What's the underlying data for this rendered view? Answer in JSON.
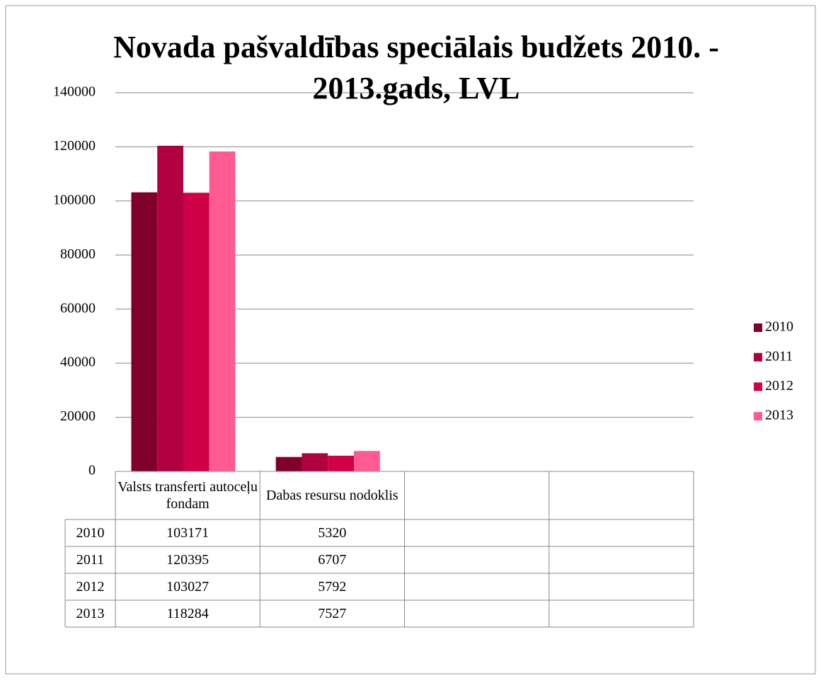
{
  "chart_data": {
    "type": "bar",
    "title": "Novada pašvaldības speciālais budžets 2010. - 2013.gads, LVL",
    "categories": [
      "Valsts transferti autoceļu fondam",
      "Dabas resursu nodoklis",
      null,
      null
    ],
    "series": [
      {
        "name": "2010",
        "color": "#800029",
        "values": [
          103171,
          5320,
          null,
          null
        ]
      },
      {
        "name": "2011",
        "color": "#b0003f",
        "values": [
          120395,
          6707,
          null,
          null
        ]
      },
      {
        "name": "2012",
        "color": "#d00046",
        "values": [
          103027,
          5792,
          null,
          null
        ]
      },
      {
        "name": "2013",
        "color": "#ff5b91",
        "values": [
          118284,
          7527,
          null,
          null
        ]
      }
    ],
    "ylim": [
      0,
      140000
    ],
    "yticks": [
      0,
      20000,
      40000,
      60000,
      80000,
      100000,
      120000,
      140000
    ],
    "grid": true,
    "legend": "right",
    "data_table": true
  }
}
